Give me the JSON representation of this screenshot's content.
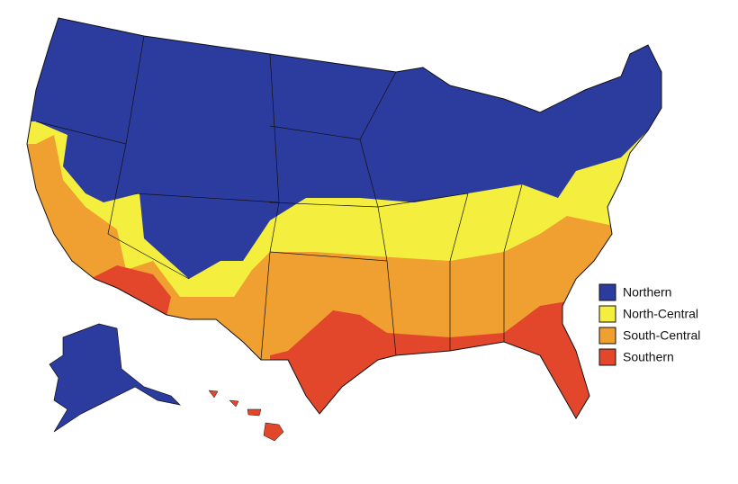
{
  "legend": [
    {
      "label": "Northern",
      "color": "#2b3c9e"
    },
    {
      "label": "North-Central",
      "color": "#f4ef3e"
    },
    {
      "label": "South-Central",
      "color": "#efa030"
    },
    {
      "label": "Southern",
      "color": "#e2472b"
    }
  ]
}
